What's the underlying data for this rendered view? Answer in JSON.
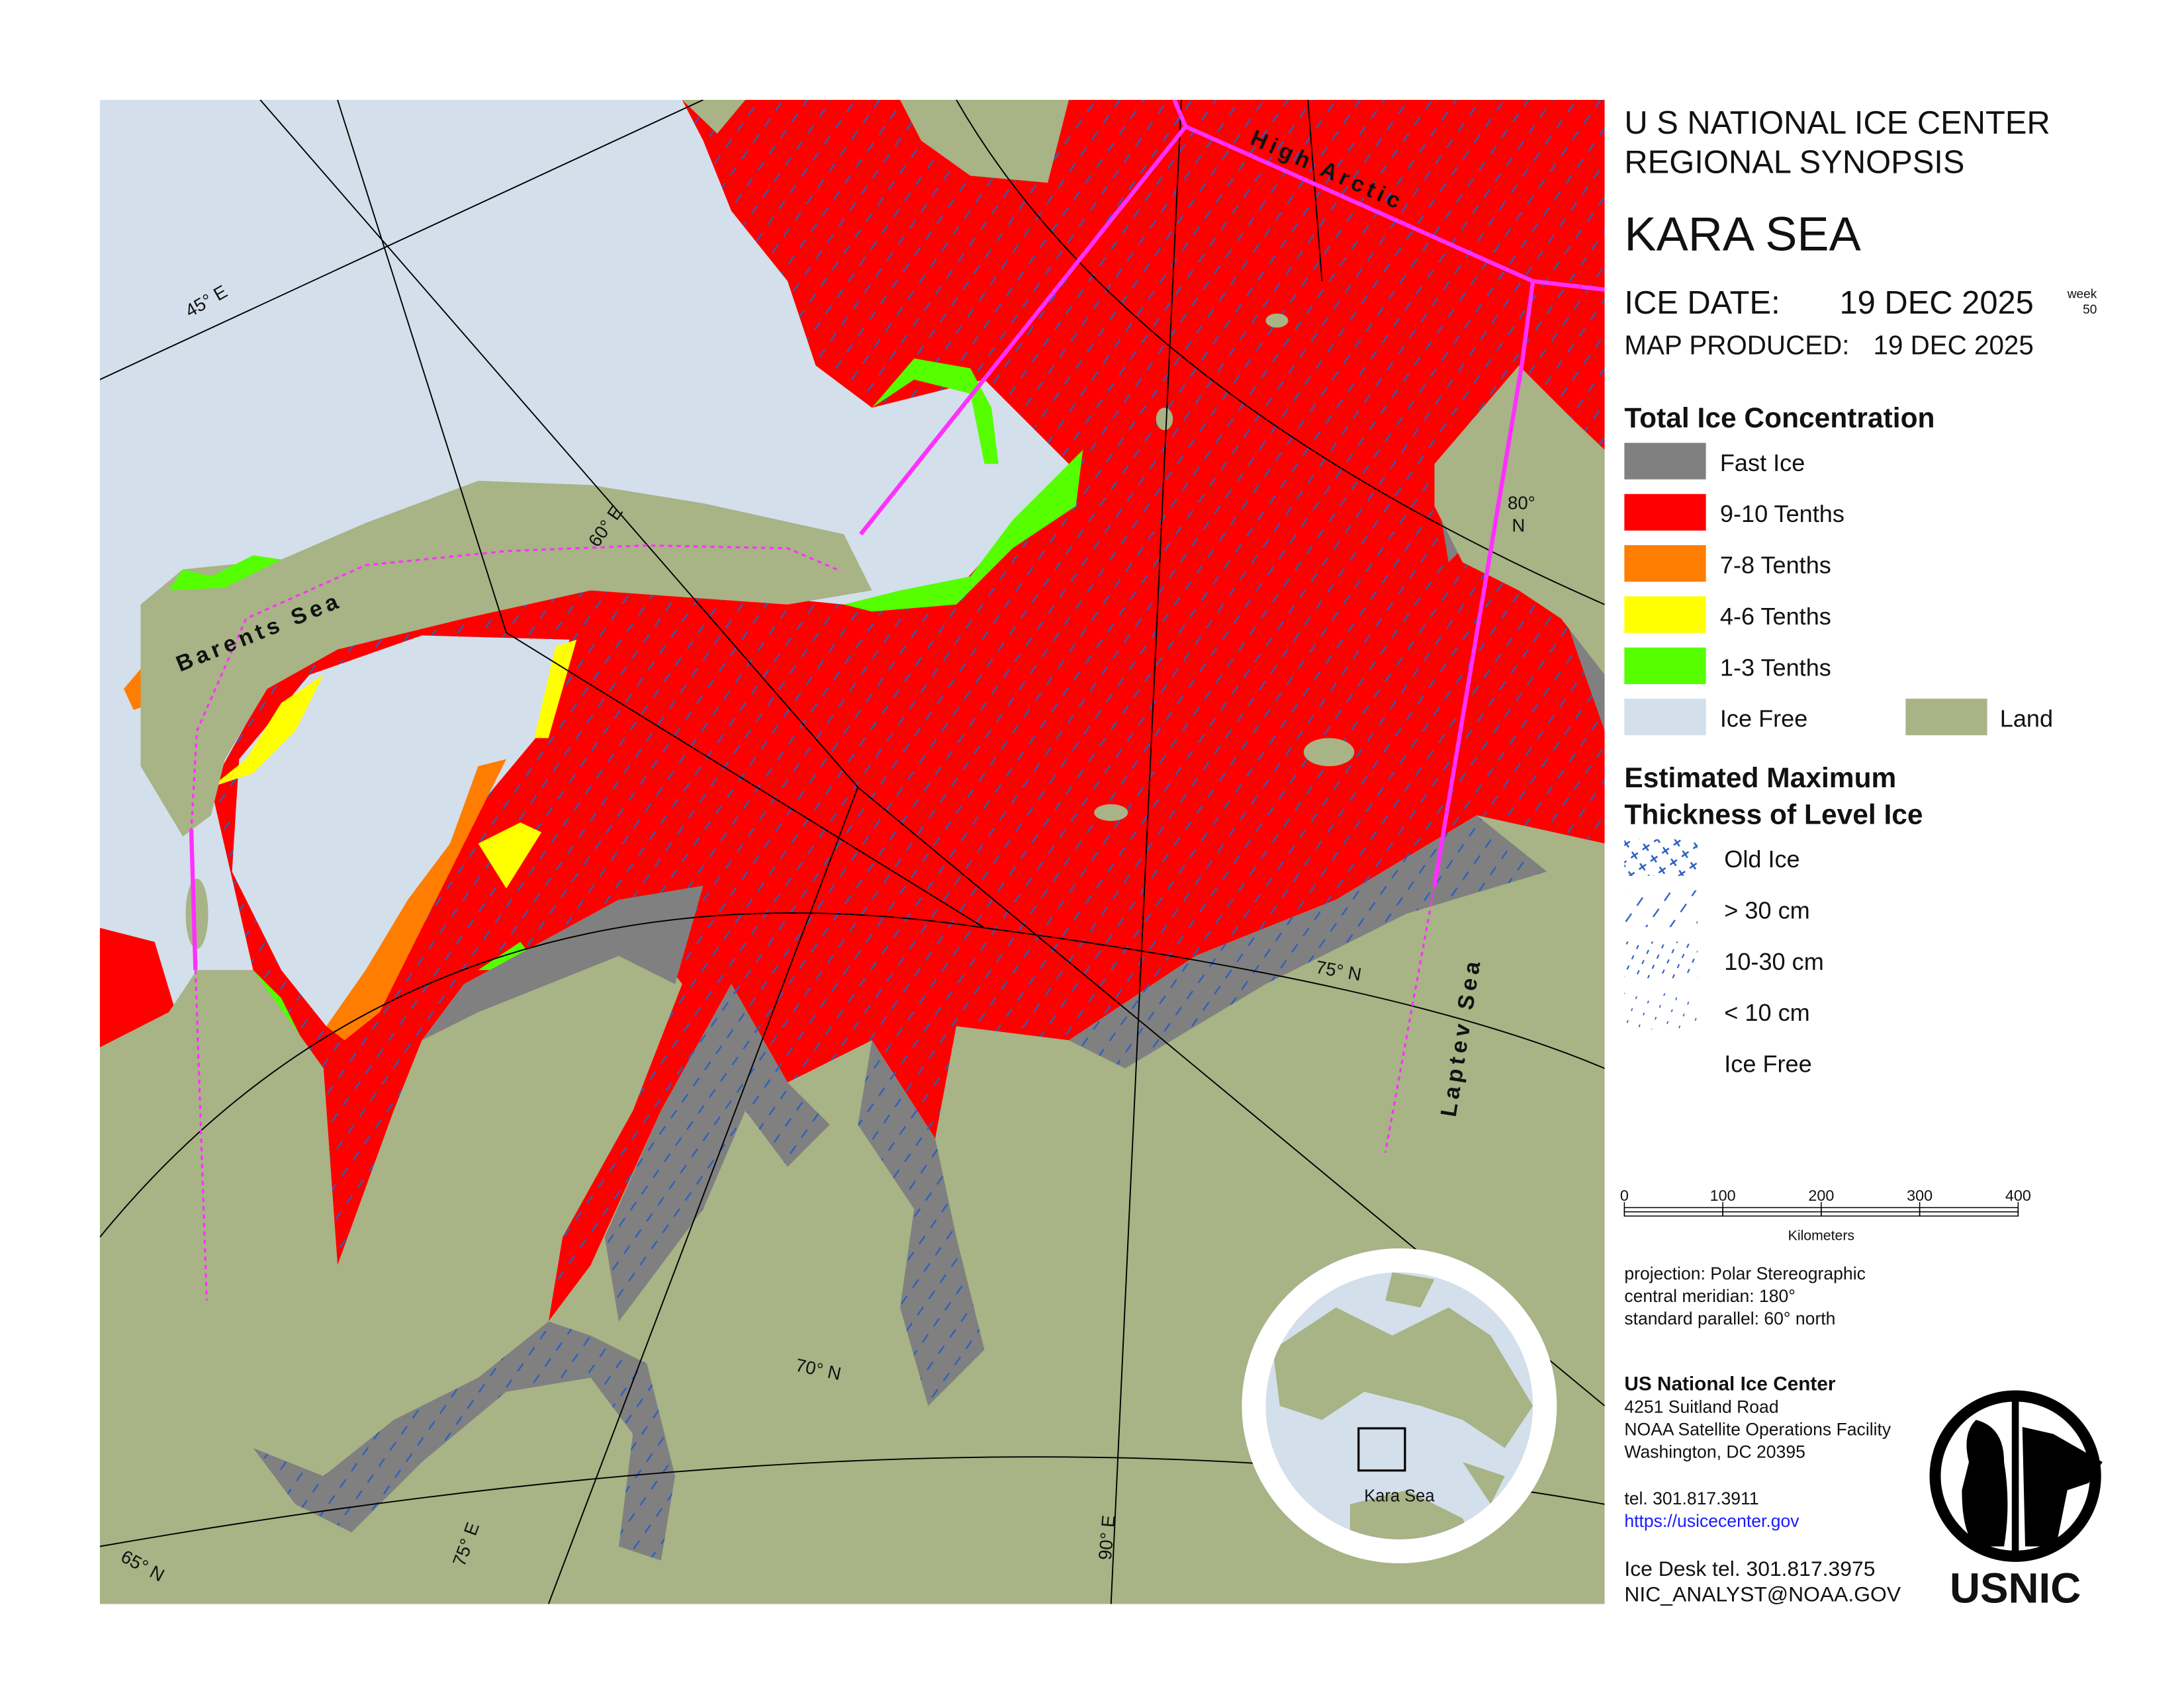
{
  "header": {
    "agency": "U S NATIONAL ICE CENTER",
    "product": "REGIONAL SYNOPSIS",
    "region": "KARA SEA",
    "ice_date_label": "ICE DATE:",
    "ice_date": "19 DEC 2025",
    "week_label": "week",
    "week": "50",
    "produced_label": "MAP PRODUCED:",
    "produced": "19 DEC 2025"
  },
  "concentration_legend": {
    "title": "Total Ice Concentration",
    "items": [
      {
        "label": "Fast Ice",
        "color": "#808080"
      },
      {
        "label": "9-10 Tenths",
        "color": "#ff0000"
      },
      {
        "label": "7-8 Tenths",
        "color": "#ff7d00"
      },
      {
        "label": "4-6 Tenths",
        "color": "#ffff00"
      },
      {
        "label": "1-3 Tenths",
        "color": "#55ff00"
      },
      {
        "label": "Ice Free",
        "color": "#d3dfea"
      },
      {
        "label": "Land",
        "color": "#a8b386"
      }
    ]
  },
  "thickness_legend": {
    "title": [
      "Estimated Maximum",
      "Thickness of Level Ice"
    ],
    "items": [
      "Old Ice",
      "> 30 cm",
      "10-30 cm",
      "< 10 cm",
      "Ice Free"
    ]
  },
  "scale_bar": {
    "ticks": [
      0,
      100,
      200,
      300,
      400
    ],
    "unit": "Kilometers"
  },
  "projection": [
    "projection: Polar Stereographic",
    "central meridian: 180°",
    "standard parallel:  60° north"
  ],
  "contact": {
    "name": "US National Ice Center",
    "address": [
      "4251 Suitland Road",
      "NOAA Satellite Operations Facility",
      "Washington, DC  20395"
    ],
    "tel": "tel. 301.817.3911",
    "url": "https://usicecenter.gov",
    "desk": "Ice Desk tel. 301.817.3975",
    "email": "NIC_ANALYST@NOAA.GOV"
  },
  "map_labels": {
    "high_arctic": "High Arctic",
    "barents": "Barents Sea",
    "laptev": "Laptev Sea",
    "lon45": "45° E",
    "lon60": "60° E",
    "lon75": "75° E",
    "lon90": "90° E",
    "lat65": "65° N",
    "lat70": "70° N",
    "lat75": "75° N",
    "lat80": [
      "80°",
      "N"
    ]
  },
  "inset_label": "Kara Sea",
  "logo": "USNIC"
}
